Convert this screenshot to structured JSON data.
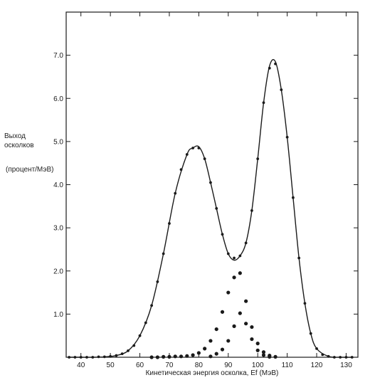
{
  "chart_data": {
    "type": "scatter",
    "title": "",
    "xlabel": "Кинетическая энергия осколка, Ef (МэВ)",
    "ylabel_lines": [
      "Выход",
      "осколков",
      "(процент/МэВ)"
    ],
    "xlim": [
      35,
      134
    ],
    "ylim": [
      0,
      8.0
    ],
    "x_ticks": [
      40,
      50,
      60,
      70,
      80,
      90,
      100,
      110,
      120,
      130
    ],
    "x_tick_labels": [
      "40",
      "50",
      "60",
      "70",
      "80",
      "90",
      "100",
      "110",
      "120",
      "130"
    ],
    "y_ticks": [
      1.0,
      2.0,
      3.0,
      4.0,
      5.0,
      6.0,
      7.0
    ],
    "y_tick_labels": [
      "1.0",
      "2.0",
      "3.0",
      "4.0",
      "5.0",
      "6.0",
      "7.0"
    ],
    "grid": false,
    "legend": "none",
    "colors": {
      "ink": "#1a1a1a"
    },
    "series": [
      {
        "kind": "total-points",
        "marker": "small-dot",
        "x": [
          36,
          38,
          40,
          42,
          44,
          46,
          48,
          50,
          52,
          54,
          56,
          58,
          60,
          62,
          64,
          66,
          68,
          70,
          72,
          74,
          76,
          78,
          80,
          82,
          84,
          86,
          88,
          90,
          92,
          94,
          96,
          98,
          100,
          102,
          104,
          106,
          108,
          110,
          112,
          114,
          116,
          118,
          120,
          122,
          124,
          126,
          128,
          130,
          132
        ],
        "y": [
          0.0,
          0.0,
          0.0,
          0.0,
          0.0,
          0.01,
          0.01,
          0.02,
          0.04,
          0.08,
          0.15,
          0.27,
          0.5,
          0.8,
          1.2,
          1.75,
          2.4,
          3.1,
          3.8,
          4.35,
          4.7,
          4.85,
          4.85,
          4.6,
          4.05,
          3.45,
          2.85,
          2.4,
          2.3,
          2.35,
          2.65,
          3.4,
          4.6,
          5.9,
          6.7,
          6.8,
          6.2,
          5.1,
          3.7,
          2.3,
          1.25,
          0.55,
          0.2,
          0.06,
          0.02,
          0.0,
          0.0,
          0.0,
          0.0
        ]
      },
      {
        "kind": "light-peak-points",
        "marker": "large-dot",
        "x": [
          64,
          66,
          68,
          70,
          72,
          74,
          76,
          78,
          80,
          82,
          84,
          86,
          88,
          90,
          92,
          94,
          96,
          98,
          100,
          102,
          104,
          106
        ],
        "y": [
          0.0,
          0.0,
          0.01,
          0.01,
          0.02,
          0.02,
          0.03,
          0.05,
          0.1,
          0.2,
          0.38,
          0.65,
          1.05,
          1.5,
          1.85,
          1.95,
          1.3,
          0.7,
          0.32,
          0.12,
          0.04,
          0.01
        ]
      },
      {
        "kind": "heavy-peak-points",
        "marker": "large-dot",
        "x": [
          84,
          86,
          88,
          90,
          92,
          94,
          96,
          98,
          100,
          102,
          104
        ],
        "y": [
          0.02,
          0.08,
          0.18,
          0.38,
          0.72,
          1.02,
          0.78,
          0.42,
          0.16,
          0.05,
          0.01
        ]
      }
    ],
    "fitted_curve": {
      "x": [
        36,
        40,
        44,
        48,
        52,
        56,
        60,
        64,
        68,
        72,
        76,
        78,
        80,
        82,
        84,
        86,
        88,
        90,
        92,
        94,
        96,
        98,
        100,
        102,
        104,
        106,
        108,
        110,
        112,
        114,
        116,
        118,
        120,
        124,
        128,
        132
      ],
      "y": [
        0.0,
        0.0,
        0.0,
        0.01,
        0.04,
        0.15,
        0.5,
        1.2,
        2.4,
        3.8,
        4.7,
        4.85,
        4.88,
        4.6,
        4.05,
        3.45,
        2.85,
        2.4,
        2.25,
        2.35,
        2.65,
        3.4,
        4.6,
        5.9,
        6.75,
        6.85,
        6.2,
        5.1,
        3.7,
        2.3,
        1.25,
        0.55,
        0.2,
        0.02,
        0.0,
        0.0
      ]
    }
  }
}
